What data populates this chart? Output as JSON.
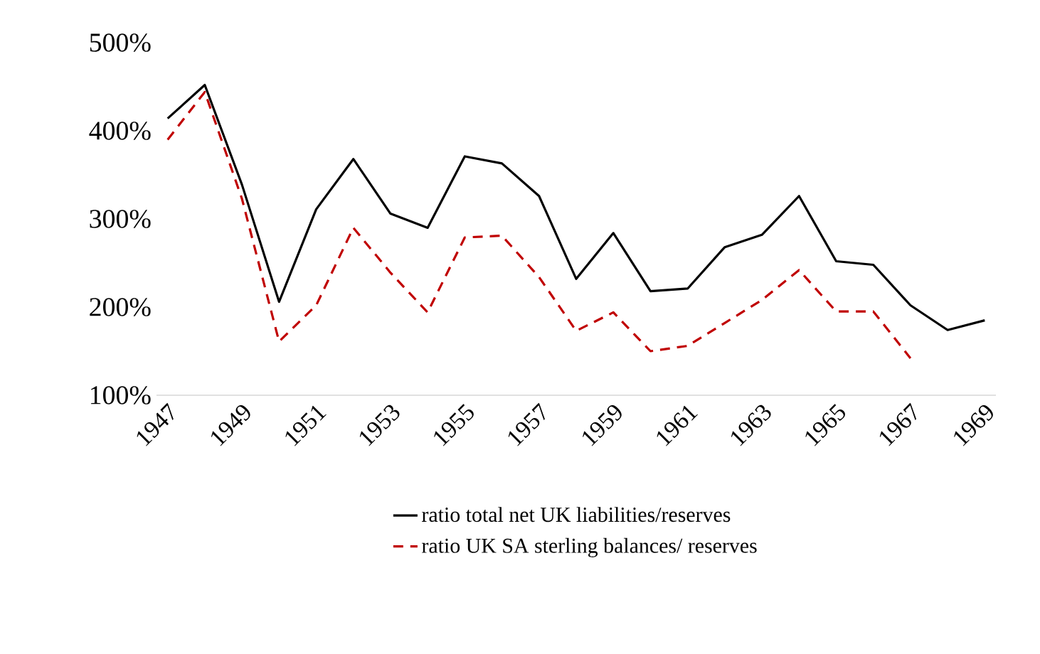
{
  "chart_data": {
    "type": "line",
    "categories": [
      "1947",
      null,
      "1949",
      null,
      "1951",
      null,
      "1953",
      null,
      "1955",
      null,
      "1957",
      null,
      "1959",
      null,
      "1961",
      null,
      "1963",
      null,
      "1965",
      null,
      "1967",
      null,
      "1969"
    ],
    "series": [
      {
        "name": "ratio total net UK liabilities/reserves",
        "color": "#000000",
        "line_style": "solid",
        "values": [
          414,
          452,
          339,
          206,
          311,
          368,
          306,
          290,
          371,
          363,
          326,
          232,
          284,
          218,
          221,
          268,
          282,
          326,
          252,
          248,
          202,
          174,
          185
        ]
      },
      {
        "name": "ratio UK SA sterling balances/ reserves",
        "color": "#c00000",
        "line_style": "dashed",
        "values": [
          390,
          444,
          323,
          161,
          202,
          290,
          239,
          194,
          279,
          281,
          234,
          173,
          194,
          150,
          156,
          182,
          208,
          242,
          195,
          195,
          142,
          null,
          null
        ]
      }
    ],
    "ylim": [
      100,
      500
    ],
    "yticks": [
      {
        "value": 100,
        "label": "100%"
      },
      {
        "value": 200,
        "label": "200%"
      },
      {
        "value": 300,
        "label": "300%"
      },
      {
        "value": 400,
        "label": "400%"
      },
      {
        "value": 500,
        "label": "500%"
      }
    ],
    "grid": false,
    "legend": "bottom",
    "marker": "none"
  }
}
